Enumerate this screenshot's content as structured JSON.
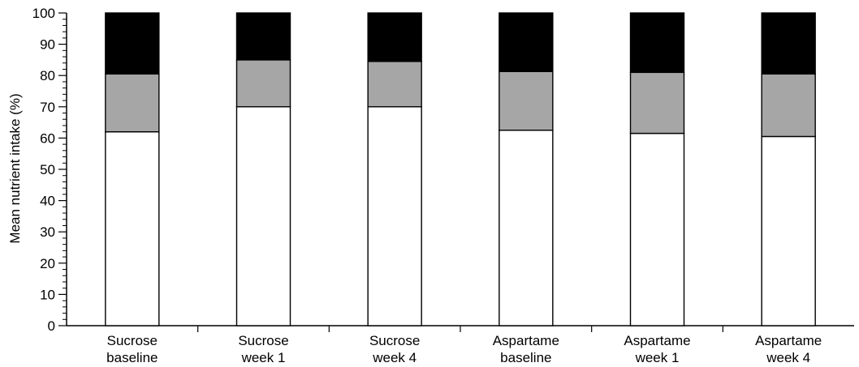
{
  "chart_data": {
    "type": "bar",
    "stacked": true,
    "title": "",
    "xlabel": "",
    "ylabel": "Mean nutrient intake (%)",
    "ylim": [
      0,
      100
    ],
    "yticks": [
      0,
      10,
      20,
      30,
      40,
      50,
      60,
      70,
      80,
      90,
      100
    ],
    "categories": [
      [
        "Sucrose",
        "baseline"
      ],
      [
        "Sucrose",
        "week 1"
      ],
      [
        "Sucrose",
        "week 4"
      ],
      [
        "Aspartame",
        "baseline"
      ],
      [
        "Aspartame",
        "week 1"
      ],
      [
        "Aspartame",
        "week 4"
      ]
    ],
    "series": [
      {
        "values": [
          62,
          70,
          70,
          62.5,
          61.5,
          60.5
        ],
        "color": "#ffffff"
      },
      {
        "values": [
          18.5,
          15,
          14.5,
          18.8,
          19.5,
          20
        ],
        "color": "#a6a6a6"
      },
      {
        "values": [
          19.5,
          15,
          15.5,
          18.7,
          19,
          19.5
        ],
        "color": "#000000"
      }
    ],
    "grid": false,
    "legend": "none"
  }
}
